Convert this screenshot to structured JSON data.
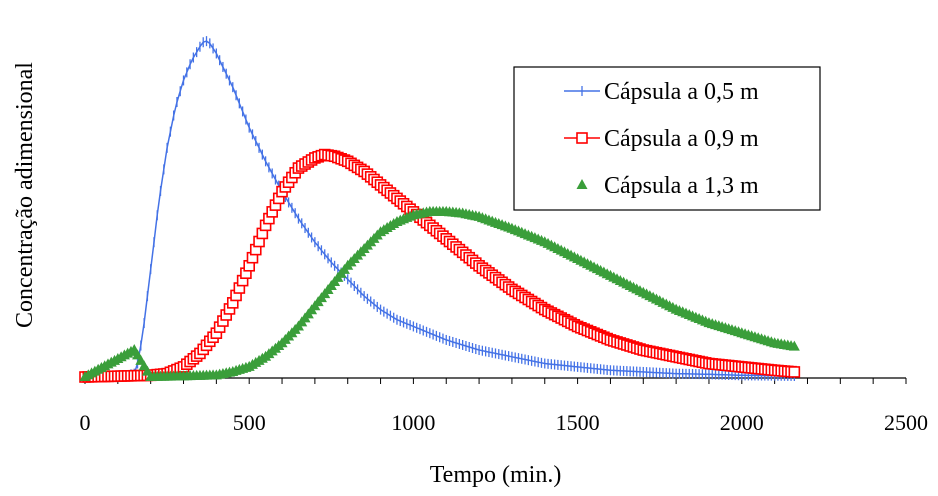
{
  "chart_data": {
    "type": "line",
    "title": "",
    "xlabel": "Tempo (min.)",
    "ylabel": "Concentração adimensional",
    "xlim": [
      0,
      2500
    ],
    "xticks": [
      0,
      500,
      1000,
      1500,
      2000,
      2500
    ],
    "ylim": [
      0,
      1
    ],
    "show_y_ticks": false,
    "grid": false,
    "legend_position": "top-right",
    "series": [
      {
        "name": "Cápsula a 0,5 m",
        "color": "#4472e6",
        "marker": "plus",
        "x": [
          0,
          100,
          150,
          160,
          175,
          200,
          225,
          250,
          275,
          300,
          325,
          350,
          365,
          380,
          400,
          425,
          450,
          475,
          500,
          550,
          600,
          650,
          700,
          750,
          800,
          850,
          900,
          950,
          1000,
          1100,
          1200,
          1300,
          1400,
          1500,
          1600,
          1700,
          1800,
          1900,
          2000,
          2100,
          2160
        ],
        "y": [
          0,
          0,
          0.01,
          0.04,
          0.12,
          0.32,
          0.52,
          0.68,
          0.8,
          0.88,
          0.94,
          0.98,
          1.0,
          0.99,
          0.96,
          0.91,
          0.86,
          0.8,
          0.74,
          0.64,
          0.55,
          0.47,
          0.4,
          0.34,
          0.29,
          0.24,
          0.2,
          0.17,
          0.15,
          0.11,
          0.08,
          0.06,
          0.04,
          0.03,
          0.02,
          0.015,
          0.01,
          0.008,
          0.005,
          0.004,
          0.003
        ]
      },
      {
        "name": "Cápsula a 0,9 m",
        "color": "#ff0000",
        "marker": "square",
        "x": [
          0,
          200,
          250,
          300,
          350,
          400,
          450,
          500,
          550,
          600,
          650,
          700,
          730,
          760,
          800,
          850,
          900,
          950,
          1000,
          1100,
          1200,
          1300,
          1400,
          1500,
          1600,
          1700,
          1800,
          1900,
          2000,
          2100,
          2160
        ],
        "y": [
          0,
          0.005,
          0.01,
          0.03,
          0.07,
          0.13,
          0.22,
          0.33,
          0.45,
          0.55,
          0.62,
          0.65,
          0.66,
          0.655,
          0.64,
          0.61,
          0.57,
          0.53,
          0.49,
          0.41,
          0.33,
          0.26,
          0.2,
          0.15,
          0.11,
          0.08,
          0.06,
          0.04,
          0.03,
          0.02,
          0.015
        ]
      },
      {
        "name": "Cápsula a 1,3 m",
        "color": "#3a9e3a",
        "marker": "triangle",
        "x": [
          0,
          150,
          200,
          300,
          400,
          450,
          500,
          550,
          600,
          650,
          700,
          750,
          800,
          850,
          900,
          950,
          1000,
          1050,
          1100,
          1150,
          1200,
          1300,
          1400,
          1500,
          1600,
          1700,
          1800,
          1900,
          2000,
          2100,
          2160
        ],
        "y": [
          0,
          0.08,
          0.0,
          0.002,
          0.005,
          0.015,
          0.03,
          0.06,
          0.1,
          0.15,
          0.21,
          0.27,
          0.33,
          0.38,
          0.43,
          0.46,
          0.48,
          0.49,
          0.49,
          0.485,
          0.475,
          0.44,
          0.4,
          0.35,
          0.3,
          0.25,
          0.2,
          0.16,
          0.13,
          0.1,
          0.09
        ]
      }
    ]
  }
}
